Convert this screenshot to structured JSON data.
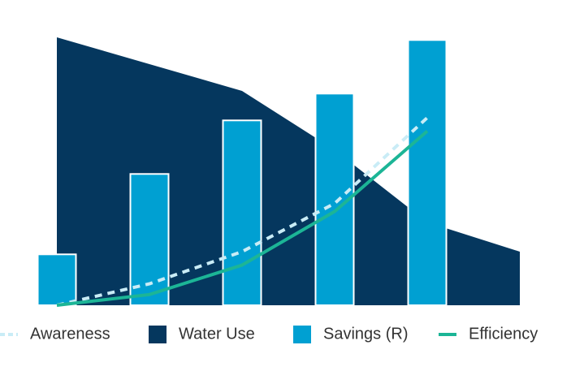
{
  "chart_data": {
    "type": "combo",
    "categories": [
      null,
      null,
      null,
      null,
      null,
      null
    ],
    "ylim": [
      0,
      100
    ],
    "y2lim": [
      0,
      100
    ],
    "series": [
      {
        "name": "Awareness",
        "type": "line",
        "dashed": true,
        "color": "#c9ecf6",
        "values": [
          0,
          8,
          20,
          38,
          70,
          null
        ]
      },
      {
        "name": "Water Use",
        "type": "area",
        "color": "#05375e",
        "values": [
          100,
          90,
          80,
          58,
          31,
          20
        ]
      },
      {
        "name": "Savings (R)",
        "type": "bar",
        "axis": "y2",
        "color": "#00a0d2",
        "values": [
          19,
          49,
          69,
          79,
          99,
          null
        ]
      },
      {
        "name": "Efficiency",
        "type": "line",
        "color": "#1cb596",
        "values": [
          0,
          4,
          15,
          35,
          65,
          null
        ]
      }
    ]
  }
}
